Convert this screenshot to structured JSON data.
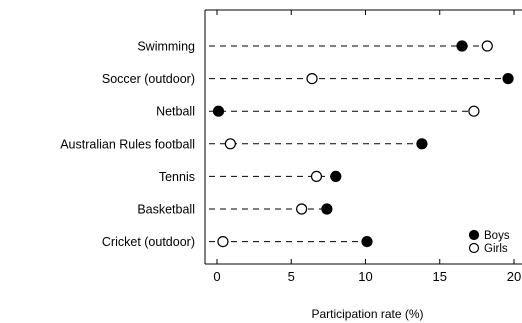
{
  "chart_data": {
    "type": "scatter",
    "subtype": "dot-plot",
    "title": "",
    "xlabel": "Participation rate (%)",
    "ylabel": "",
    "xlim": [
      0,
      20
    ],
    "x_ticks": [
      0,
      5,
      10,
      15,
      20
    ],
    "grid": false,
    "legend_position": "bottom-right",
    "categories": [
      "Swimming",
      "Soccer (outdoor)",
      "Netball",
      "Australian Rules football",
      "Tennis",
      "Basketball",
      "Cricket (outdoor)"
    ],
    "series": [
      {
        "name": "Boys",
        "marker": "filled-circle",
        "values": [
          16.5,
          19.6,
          0.1,
          13.8,
          8.0,
          7.4,
          10.1
        ]
      },
      {
        "name": "Girls",
        "marker": "open-circle",
        "values": [
          18.2,
          6.4,
          17.3,
          0.9,
          6.7,
          5.7,
          0.4
        ]
      }
    ]
  }
}
